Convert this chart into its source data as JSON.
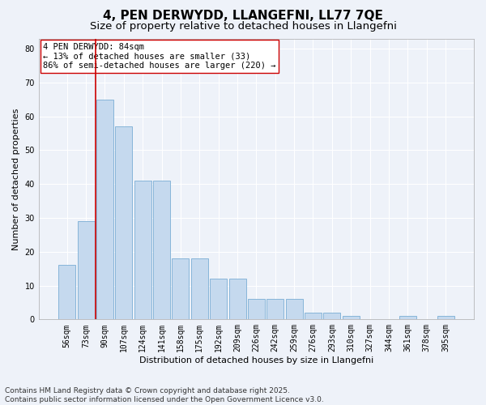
{
  "title": "4, PEN DERWYDD, LLANGEFNI, LL77 7QE",
  "subtitle": "Size of property relative to detached houses in Llangefni",
  "xlabel": "Distribution of detached houses by size in Llangefni",
  "ylabel": "Number of detached properties",
  "categories": [
    "56sqm",
    "73sqm",
    "90sqm",
    "107sqm",
    "124sqm",
    "141sqm",
    "158sqm",
    "175sqm",
    "192sqm",
    "209sqm",
    "226sqm",
    "242sqm",
    "259sqm",
    "276sqm",
    "293sqm",
    "310sqm",
    "327sqm",
    "344sqm",
    "361sqm",
    "378sqm",
    "395sqm"
  ],
  "values": [
    16,
    29,
    65,
    57,
    41,
    41,
    18,
    18,
    12,
    12,
    6,
    6,
    6,
    2,
    2,
    1,
    0,
    0,
    1,
    0,
    1
  ],
  "bar_color": "#c5d9ee",
  "bar_edge_color": "#7aadd4",
  "background_color": "#eef2f9",
  "grid_color": "#ffffff",
  "vline_color": "#cc0000",
  "annotation_text": "4 PEN DERWYDD: 84sqm\n← 13% of detached houses are smaller (33)\n86% of semi-detached houses are larger (220) →",
  "annotation_box_color": "#ffffff",
  "annotation_box_edge": "#cc0000",
  "footnote": "Contains HM Land Registry data © Crown copyright and database right 2025.\nContains public sector information licensed under the Open Government Licence v3.0.",
  "ylim": [
    0,
    83
  ],
  "yticks": [
    0,
    10,
    20,
    30,
    40,
    50,
    60,
    70,
    80
  ],
  "title_fontsize": 11,
  "subtitle_fontsize": 9.5,
  "xlabel_fontsize": 8,
  "ylabel_fontsize": 8,
  "tick_fontsize": 7,
  "footnote_fontsize": 6.5,
  "annotation_fontsize": 7.5
}
